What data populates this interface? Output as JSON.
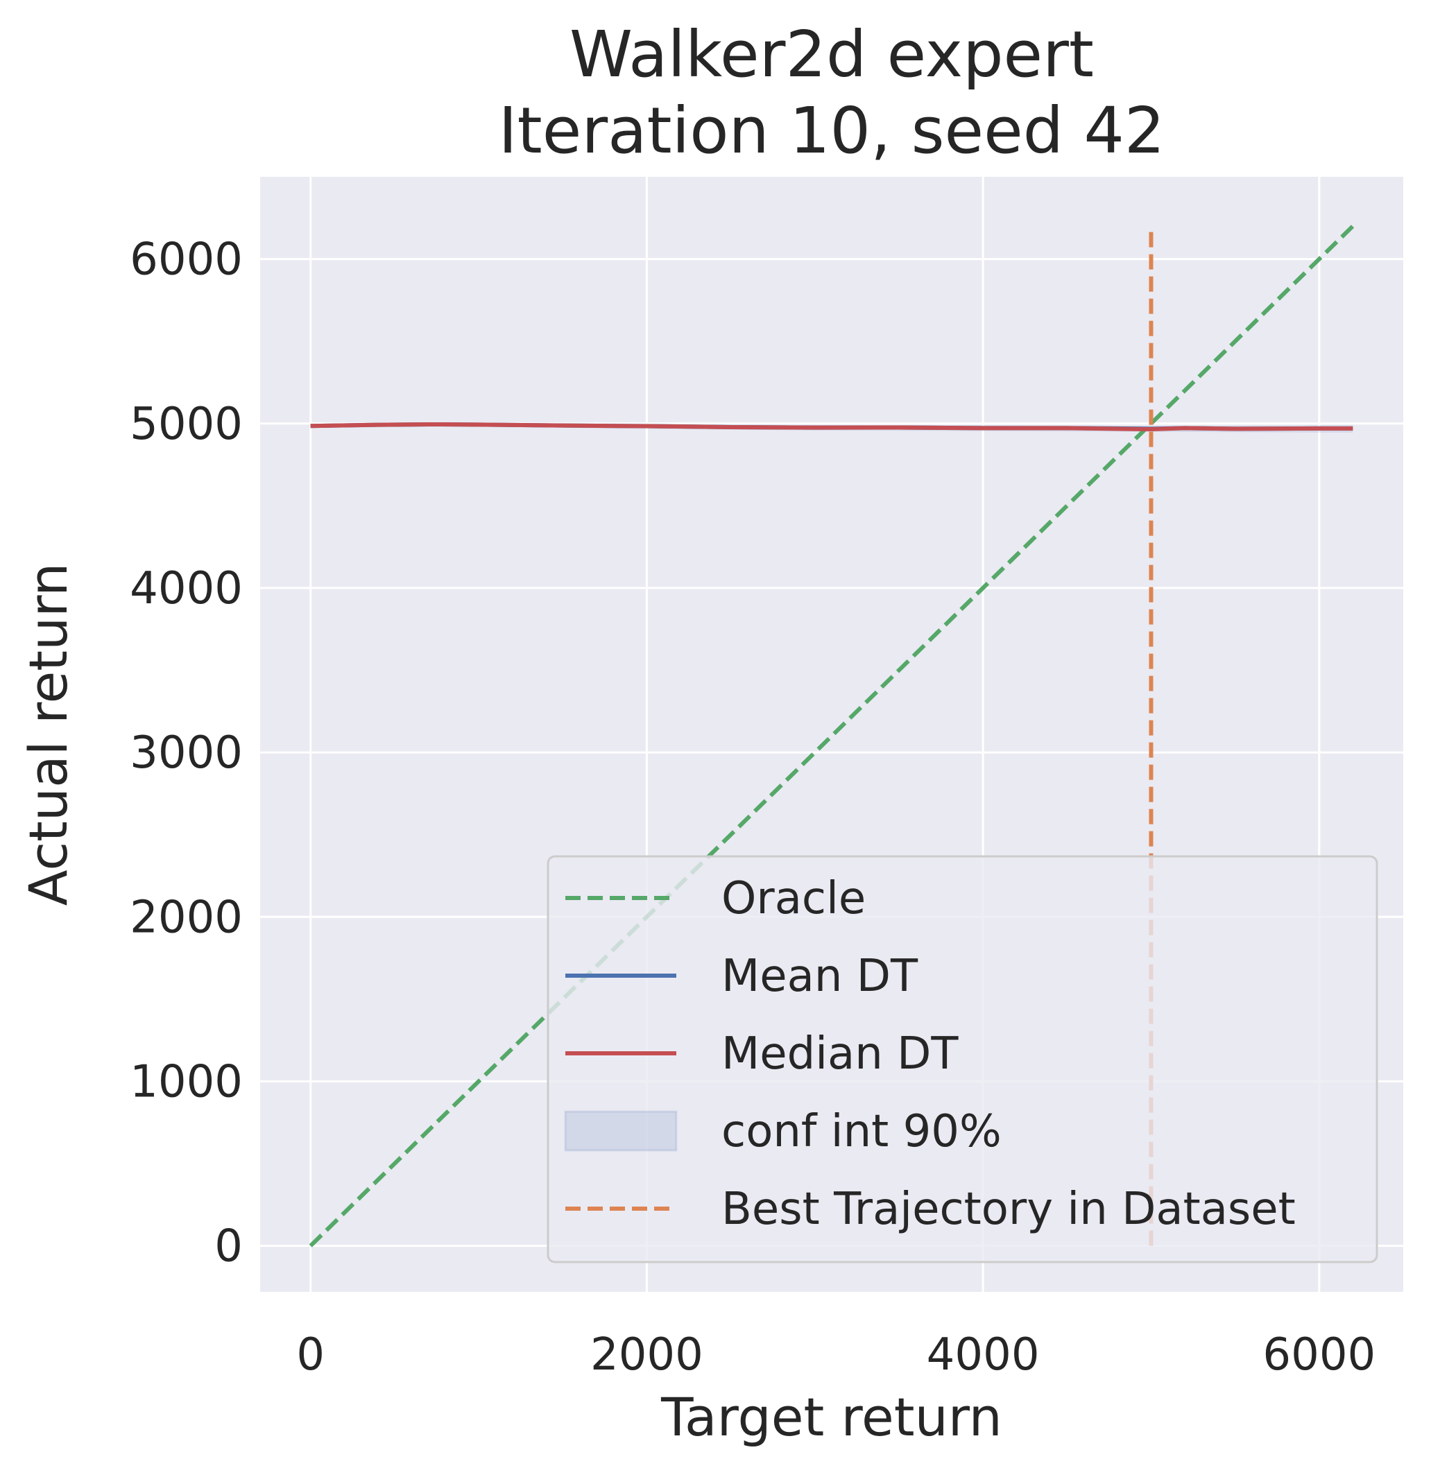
{
  "chart_data": {
    "type": "line",
    "title": "Walker2d expert",
    "subtitle": "Iteration 10, seed 42",
    "xlabel": "Target return",
    "ylabel": "Actual return",
    "xlim": [
      -300,
      6500
    ],
    "ylim": [
      -280,
      6500
    ],
    "xticks": [
      0,
      2000,
      4000,
      6000
    ],
    "yticks": [
      0,
      1000,
      2000,
      3000,
      4000,
      5000,
      6000
    ],
    "grid": true,
    "legend_position": "lower-right",
    "colors": {
      "background": "#eaeaf2",
      "grid": "#ffffff",
      "oracle": "#55a868",
      "mean": "#4c72b0",
      "median": "#c44e52",
      "conf": "#4c72b0",
      "best": "#dd8452"
    },
    "series": [
      {
        "name": "Oracle",
        "style": "dashed",
        "x": [
          0,
          6200
        ],
        "y": [
          0,
          6200
        ]
      },
      {
        "name": "Mean DT",
        "style": "solid",
        "x": [
          0,
          400,
          700,
          1000,
          1500,
          2000,
          2500,
          3000,
          3500,
          4000,
          4500,
          5000,
          5200,
          5500,
          6000,
          6200
        ],
        "y": [
          4985,
          4992,
          4995,
          4993,
          4988,
          4984,
          4978,
          4975,
          4976,
          4972,
          4972,
          4968,
          4972,
          4968,
          4970,
          4970
        ]
      },
      {
        "name": "Median DT",
        "style": "solid",
        "x": [
          0,
          400,
          700,
          1000,
          1500,
          2000,
          2500,
          3000,
          3500,
          4000,
          4500,
          5000,
          5200,
          5500,
          6000,
          6200
        ],
        "y": [
          4985,
          4992,
          4995,
          4993,
          4988,
          4984,
          4978,
          4975,
          4976,
          4972,
          4972,
          4965,
          4972,
          4968,
          4970,
          4970
        ]
      },
      {
        "name": "conf int 90%",
        "style": "band",
        "x": [
          0,
          1000,
          2000,
          3000,
          4000,
          5000,
          6000,
          6200
        ],
        "lower": [
          4975,
          4982,
          4968,
          4958,
          4955,
          4950,
          4945,
          4945
        ],
        "upper": [
          4995,
          5004,
          5000,
          4992,
          4990,
          4985,
          4990,
          4990
        ]
      },
      {
        "name": "Best Trajectory in Dataset",
        "style": "dashed-vertical",
        "x": [
          5000,
          5000
        ],
        "y": [
          0,
          6200
        ]
      }
    ]
  }
}
